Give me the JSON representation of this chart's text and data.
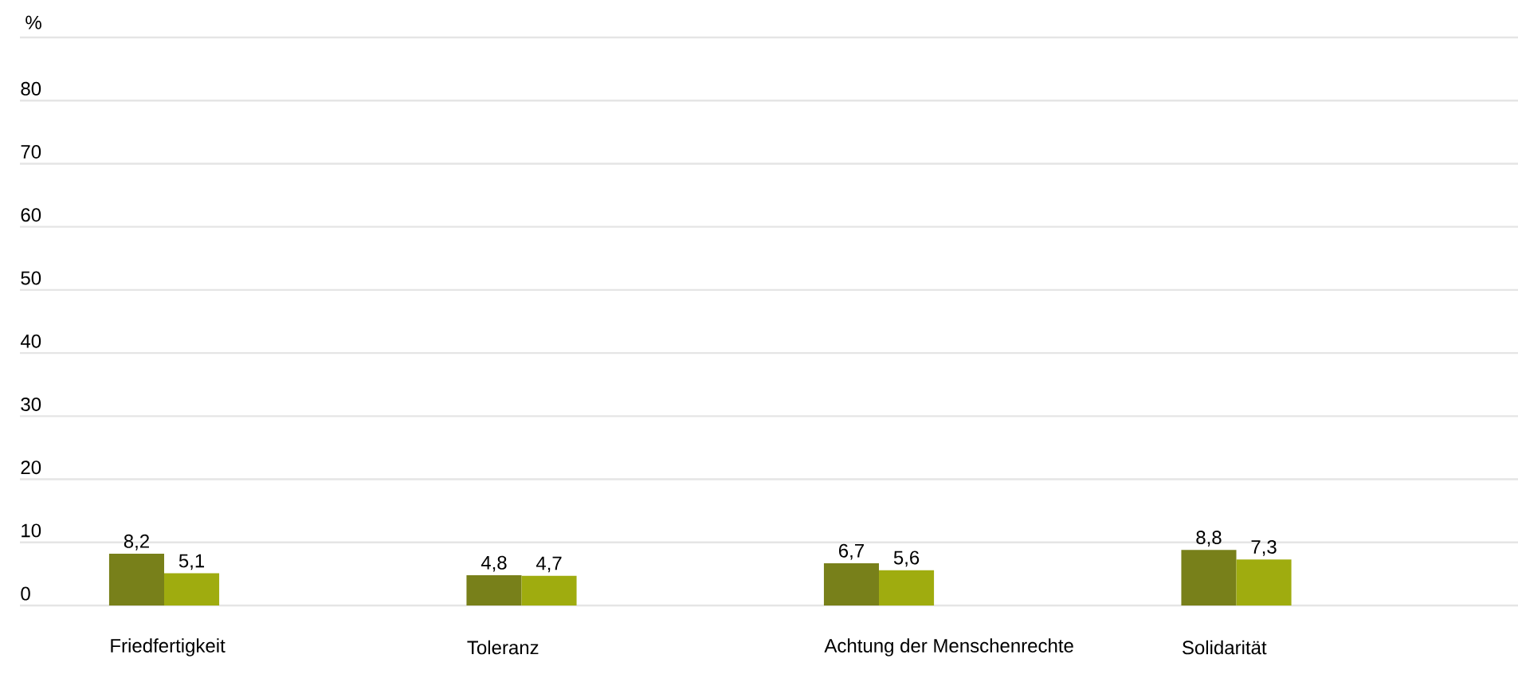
{
  "chart_data": {
    "type": "bar",
    "ylabel": "%",
    "categories": [
      "Friedfertigkeit",
      "Toleranz",
      "Achtung der Menschenrechte",
      "Solidarität"
    ],
    "series": [
      {
        "color": "#78801a",
        "values": [
          8.2,
          4.8,
          6.7,
          8.8
        ],
        "value_labels": [
          "8,2",
          "4,8",
          "6,7",
          "8,8"
        ]
      },
      {
        "color": "#9fac0f",
        "values": [
          5.1,
          4.7,
          5.6,
          7.3
        ],
        "value_labels": [
          "5,1",
          "4,7",
          "5,6",
          "7,3"
        ]
      }
    ],
    "ylim": [
      0,
      90
    ],
    "yticks": [
      0,
      10,
      20,
      30,
      40,
      50,
      60,
      70,
      80,
      {
        "value": 90,
        "label": null
      }
    ],
    "grid": "y"
  }
}
